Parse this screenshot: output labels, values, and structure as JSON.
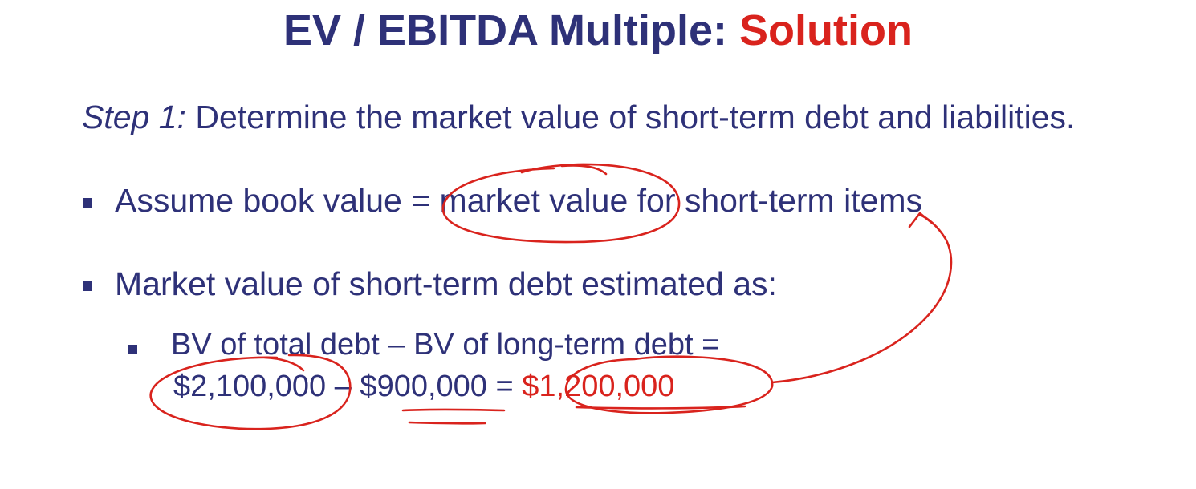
{
  "slide": {
    "title_main": "EV / EBITDA Multiple: ",
    "title_accent": "Solution",
    "step_label": "Step 1:",
    "step_text": " Determine the market value of short-term debt and liabilities.",
    "bullets": [
      {
        "text": "Assume book value = market value for short-term items"
      },
      {
        "text": "Market value of short-term debt estimated as:"
      }
    ],
    "sub_bullet": {
      "line1": "BV of total debt – BV of long-term debt =",
      "line2_prefix": "$2,100,000 – $900,000 = ",
      "result": "$1,200,000"
    }
  },
  "colors": {
    "text": "#2e3178",
    "accent": "#d9231d",
    "background": "#ffffff"
  }
}
